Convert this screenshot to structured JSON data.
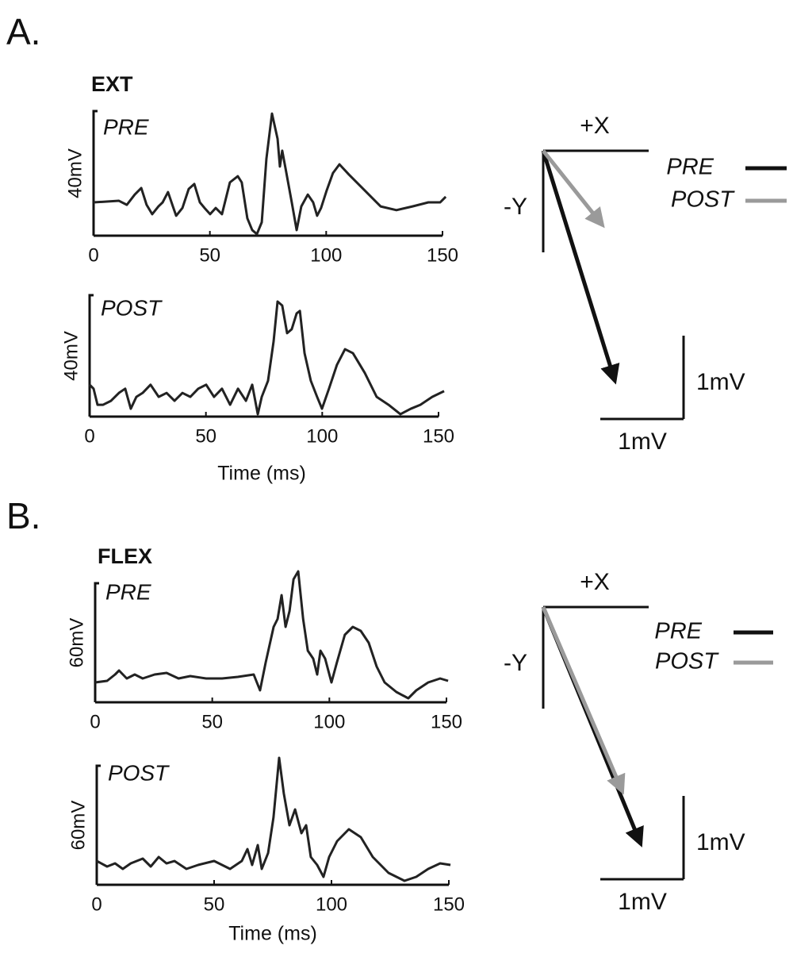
{
  "panel_labels": [
    "A.",
    "B."
  ],
  "chart_data": [
    {
      "type": "line",
      "title": "EXT",
      "annotation": "PRE",
      "ylabel": "40mV",
      "color": "#222222",
      "xlim": [
        0,
        150
      ],
      "xticks": [
        0,
        50,
        100,
        150
      ],
      "ylim": [
        0,
        40
      ],
      "x": [
        0,
        10.9,
        14.3,
        17.7,
        20.5,
        22.8,
        25.2,
        27.9,
        29.7,
        32.0,
        34.1,
        35.5,
        38.2,
        40.9,
        43.3,
        45.7,
        47.7,
        50.1,
        52.5,
        55.2,
        58.6,
        62.0,
        63.7,
        66.1,
        68.2,
        70.2,
        72.3,
        74.3,
        76.7,
        79.1,
        80.1,
        81.1,
        82.5,
        85.2,
        87.3,
        89.3,
        92.1,
        94.4,
        96.1,
        97.8,
        100.2,
        102.9,
        105.7,
        109.8,
        116.6,
        123.4,
        130.2,
        137.1,
        143.9,
        149.0,
        151.4
      ],
      "values": [
        10.7,
        11.2,
        9.9,
        13.2,
        15.3,
        9.9,
        6.9,
        9.4,
        10.7,
        14.0,
        9.4,
        6.4,
        8.9,
        15.0,
        16.6,
        10.7,
        8.9,
        6.9,
        8.9,
        6.9,
        17.1,
        19.1,
        17.1,
        5.6,
        1.8,
        0.5,
        4.3,
        24.7,
        39.2,
        31.1,
        22.2,
        27.3,
        21.7,
        10.7,
        1.8,
        9.4,
        13.2,
        10.7,
        6.4,
        8.9,
        14.5,
        20.1,
        22.9,
        19.6,
        14.5,
        9.4,
        8.2,
        9.4,
        10.7,
        10.7,
        12.5
      ]
    },
    {
      "type": "line",
      "annotation": "POST",
      "ylabel": "40mV",
      "xlabel": "Time (ms)",
      "color": "#222222",
      "xlim": [
        0,
        150
      ],
      "xticks": [
        0,
        50,
        100,
        150
      ],
      "ylim": [
        0,
        40
      ],
      "x": [
        0,
        1.7,
        3.4,
        5.8,
        9.2,
        12.6,
        15.3,
        17.7,
        20.1,
        22.8,
        26.2,
        29.7,
        33.1,
        36.5,
        39.9,
        43.3,
        46.7,
        50.1,
        53.5,
        56.9,
        60.4,
        63.8,
        67.2,
        69.9,
        72.3,
        74.0,
        76.7,
        79.1,
        80.8,
        82.8,
        84.9,
        86.9,
        89.0,
        90.4,
        92.4,
        95.1,
        97.8,
        99.9,
        102.9,
        106.3,
        109.8,
        113.2,
        118.3,
        123.4,
        128.5,
        133.6,
        138.1,
        142.2,
        147.3,
        152.4
      ],
      "values": [
        10.5,
        9.2,
        3.9,
        3.9,
        5.2,
        7.8,
        9.2,
        2.6,
        6.5,
        7.8,
        10.5,
        6.5,
        7.8,
        5.2,
        7.8,
        6.5,
        9.2,
        10.5,
        6.5,
        9.2,
        3.9,
        9.2,
        5.2,
        10.5,
        0.8,
        6.5,
        11.8,
        24.8,
        37.9,
        36.6,
        27.5,
        28.8,
        34.0,
        34.8,
        20.9,
        11.8,
        6.5,
        2.6,
        9.2,
        17.0,
        22.2,
        20.9,
        14.4,
        6.5,
        3.9,
        0.8,
        2.6,
        3.9,
        6.5,
        8.4
      ]
    },
    {
      "type": "vector",
      "xaxis_label": "+X",
      "yaxis_label": "-Y",
      "scale_x": {
        "value": 1,
        "label": "1mV"
      },
      "scale_y": {
        "value": 1,
        "label": "1mV"
      },
      "series": [
        {
          "name": "PRE",
          "color": "#111111",
          "x": 0.86,
          "y": -2.76
        },
        {
          "name": "POST",
          "color": "#9a9a9a",
          "x": 0.71,
          "y": -0.89
        }
      ]
    },
    {
      "type": "line",
      "title": "FLEX",
      "annotation": "PRE",
      "ylabel": "60mV",
      "color": "#222222",
      "xlim": [
        0,
        150
      ],
      "xticks": [
        0,
        50,
        100,
        150
      ],
      "ylim": [
        0,
        60
      ],
      "x": [
        0,
        5.1,
        8.5,
        10.2,
        13.5,
        16.9,
        20.3,
        25.4,
        30.5,
        35.6,
        40.6,
        47.4,
        54.2,
        60.9,
        67.7,
        70.4,
        72.8,
        76.2,
        77.9,
        79.6,
        81.3,
        83.0,
        84.7,
        86.7,
        88.8,
        90.8,
        93.1,
        94.8,
        96.2,
        98.2,
        100.9,
        103.2,
        106.6,
        110.0,
        113.4,
        116.8,
        120.2,
        123.6,
        128.6,
        133.7,
        137.1,
        142.2,
        147.3,
        150.7
      ],
      "values": [
        10,
        10.8,
        14,
        16,
        12,
        14,
        12,
        14,
        14.8,
        12,
        13.2,
        12,
        12,
        12.8,
        14,
        6,
        20,
        38,
        42,
        54,
        38,
        46,
        62,
        66,
        42,
        26,
        22,
        14,
        26,
        22,
        10,
        20,
        34,
        38,
        36,
        30,
        18,
        10,
        5.2,
        2,
        6,
        10,
        12,
        10.8
      ]
    },
    {
      "type": "line",
      "annotation": "POST",
      "ylabel": "60mV",
      "xlabel": "Time (ms)",
      "color": "#222222",
      "xlim": [
        0,
        150
      ],
      "xticks": [
        0,
        50,
        100,
        150
      ],
      "ylim": [
        0,
        60
      ],
      "x": [
        0,
        4.4,
        7.8,
        11.1,
        14.5,
        19.6,
        23.0,
        26.4,
        29.7,
        33.1,
        38.2,
        43.2,
        50.0,
        56.8,
        61.8,
        64.2,
        66.2,
        68.6,
        70.3,
        73.0,
        75.3,
        77.7,
        79.7,
        82.1,
        84.5,
        87.2,
        89.2,
        91.2,
        93.9,
        96.6,
        99.0,
        102.4,
        107.4,
        112.5,
        117.6,
        124.3,
        131.1,
        136.1,
        141.2,
        146.3,
        150.7
      ],
      "values": [
        12,
        9.2,
        10.8,
        8,
        10.8,
        13.2,
        9.2,
        14,
        10.8,
        12,
        8,
        10,
        12,
        8,
        12,
        18,
        10,
        20,
        8,
        16,
        34,
        64,
        46,
        30,
        38,
        26,
        30,
        14,
        10,
        4,
        14,
        22,
        28,
        24,
        14,
        6,
        2,
        4,
        8,
        10.8,
        10
      ]
    },
    {
      "type": "vector",
      "xaxis_label": "+X",
      "yaxis_label": "-Y",
      "scale_x": {
        "value": 1,
        "label": "1mV"
      },
      "scale_y": {
        "value": 1,
        "label": "1mV"
      },
      "series": [
        {
          "name": "PRE",
          "color": "#111111",
          "x": 1.17,
          "y": -2.84
        },
        {
          "name": "POST",
          "color": "#9a9a9a",
          "x": 0.95,
          "y": -2.21
        }
      ]
    }
  ]
}
